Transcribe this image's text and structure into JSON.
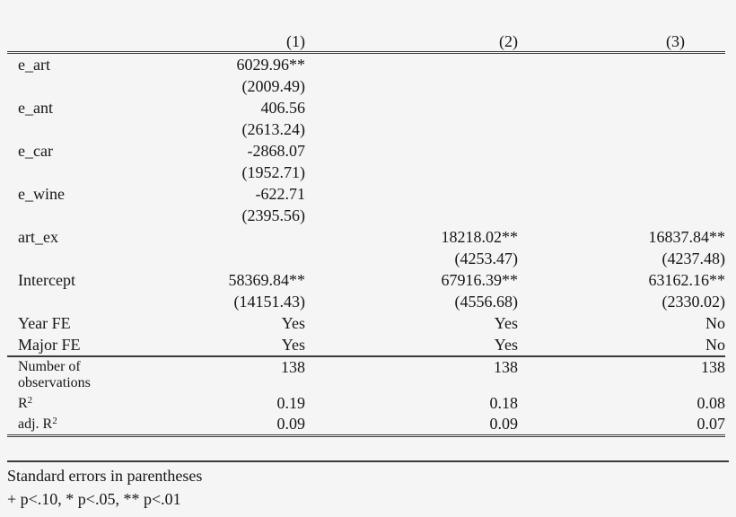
{
  "page": {
    "background_color": "#f5f5f5",
    "text_color": "#161616",
    "rule_color": "#3a3a3a"
  },
  "table": {
    "column_headers": [
      "(1)",
      "(2)",
      "(3)"
    ],
    "coefficient_rows": [
      {
        "label": "e_art",
        "estimates": [
          "6029.96**",
          "",
          ""
        ],
        "std_errors": [
          "(2009.49)",
          "",
          ""
        ]
      },
      {
        "label": "e_ant",
        "estimates": [
          "406.56",
          "",
          ""
        ],
        "std_errors": [
          "(2613.24)",
          "",
          ""
        ]
      },
      {
        "label": "e_car",
        "estimates": [
          "-2868.07",
          "",
          ""
        ],
        "std_errors": [
          "(1952.71)",
          "",
          ""
        ]
      },
      {
        "label": "e_wine",
        "estimates": [
          "-622.71",
          "",
          ""
        ],
        "std_errors": [
          "(2395.56)",
          "",
          ""
        ]
      },
      {
        "label": "art_ex",
        "estimates": [
          "",
          "18218.02**",
          "16837.84**"
        ],
        "std_errors": [
          "",
          "(4253.47)",
          "(4237.48)"
        ]
      },
      {
        "label": "Intercept",
        "estimates": [
          "58369.84**",
          "67916.39**",
          "63162.16**"
        ],
        "std_errors": [
          "(14151.43)",
          "(4556.68)",
          "(2330.02)"
        ]
      }
    ],
    "fixed_effect_rows": [
      {
        "label": "Year FE",
        "values": [
          "Yes",
          "Yes",
          "No"
        ]
      },
      {
        "label": "Major FE",
        "values": [
          "Yes",
          "Yes",
          "No"
        ]
      }
    ],
    "stat_rows": [
      {
        "label": "Number of observations",
        "superscript": "",
        "values": [
          "138",
          "138",
          "138"
        ]
      },
      {
        "label": "R",
        "superscript": "2",
        "values": [
          "0.19",
          "0.18",
          "0.08"
        ]
      },
      {
        "label": "adj. R",
        "superscript": "2",
        "values": [
          "0.09",
          "0.09",
          "0.07"
        ]
      }
    ],
    "notes": [
      "Standard errors in parentheses",
      "+ p<.10, * p<.05, ** p<.01"
    ]
  }
}
